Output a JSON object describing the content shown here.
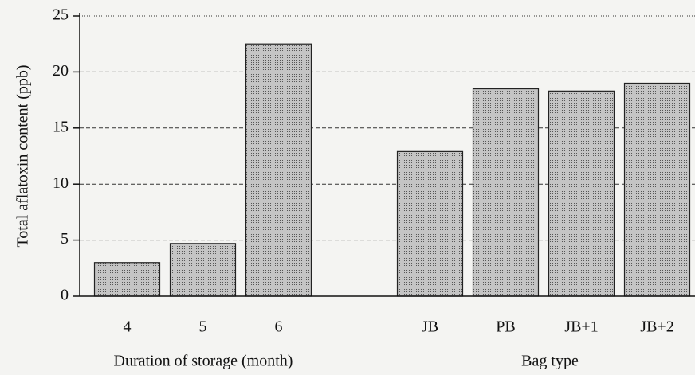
{
  "chart_data": {
    "type": "bar",
    "ylabel": "Total aflatoxin content (ppb)",
    "group_labels": [
      "Duration of storage (month)",
      "Bag type"
    ],
    "categories": [
      "4",
      "5",
      "6",
      null,
      "JB",
      "PB",
      "JB+1",
      "JB+2"
    ],
    "values": [
      3.0,
      4.7,
      22.5,
      null,
      12.9,
      18.5,
      18.3,
      19.0
    ],
    "color": "#c4c4c4",
    "ylim": [
      0,
      25
    ],
    "yticks": [
      0,
      5,
      10,
      15,
      20,
      25
    ],
    "grid": true
  }
}
